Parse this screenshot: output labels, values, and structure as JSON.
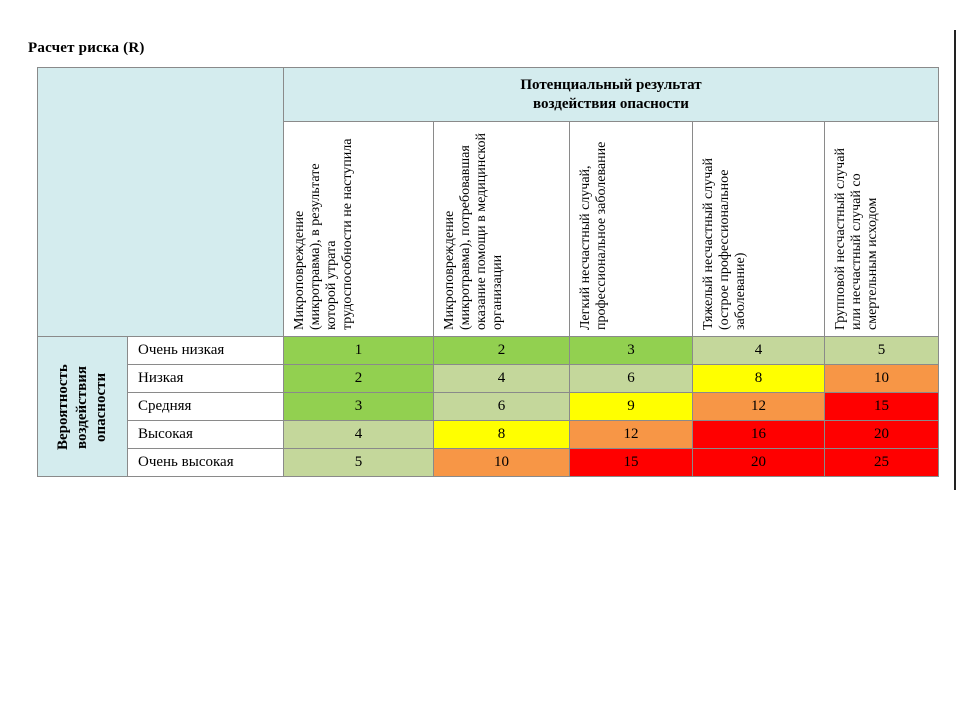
{
  "title": "Расчет риска (R)",
  "table": {
    "header_main_line1": "Потенциальный результат",
    "header_main_line2": "воздействия опасности",
    "row_group_label_line1": "Вероятность",
    "row_group_label_line2": "воздействия",
    "row_group_label_line3": "опасности",
    "columns": [
      "Микроповреждение (микротравма), в результате которой утрата трудоспособности не наступила",
      "Микроповреждение (микротравма), потребовавшая оказание помощи в медицинской организации",
      "Легкий несчастный случай, профессиональное заболевание",
      "Тяжелый несчастный случай (острое профессиональное заболевание)",
      "Групповой несчастный случай или несчастный случай со смертельным исходом"
    ],
    "rows": [
      {
        "label": "Очень низкая",
        "values": [
          "1",
          "2",
          "3",
          "4",
          "5"
        ]
      },
      {
        "label": "Низкая",
        "values": [
          "2",
          "4",
          "6",
          "8",
          "10"
        ]
      },
      {
        "label": "Средняя",
        "values": [
          "3",
          "6",
          "9",
          "12",
          "15"
        ]
      },
      {
        "label": "Высокая",
        "values": [
          "4",
          "8",
          "12",
          "16",
          "20"
        ]
      },
      {
        "label": "Очень высокая",
        "values": [
          "5",
          "10",
          "15",
          "20",
          "25"
        ]
      }
    ],
    "cell_colors": [
      [
        "#92d050",
        "#92d050",
        "#92d050",
        "#c4d79b",
        "#c4d79b"
      ],
      [
        "#92d050",
        "#c4d79b",
        "#c4d79b",
        "#ffff00",
        "#f79646"
      ],
      [
        "#92d050",
        "#c4d79b",
        "#ffff00",
        "#f79646",
        "#ff0000"
      ],
      [
        "#c4d79b",
        "#ffff00",
        "#f79646",
        "#ff0000",
        "#ff0000"
      ],
      [
        "#c4d79b",
        "#f79646",
        "#ff0000",
        "#ff0000",
        "#ff0000"
      ]
    ]
  }
}
